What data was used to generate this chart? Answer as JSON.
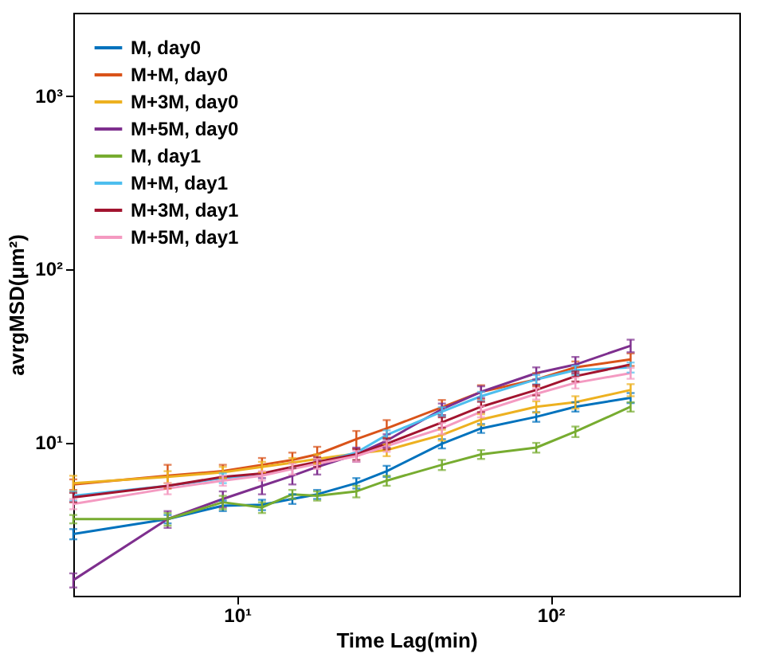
{
  "chart_data": {
    "type": "line",
    "xlabel": "Time Lag(min)",
    "ylabel": "avrgMSD(μm²)",
    "log": "xy",
    "legend": "top left",
    "grid": false,
    "xlim": [
      3,
      400
    ],
    "ylim": [
      1.3,
      3000
    ],
    "xticks": [
      {
        "value": 10,
        "label": "10¹"
      },
      {
        "value": 100,
        "label": "10²"
      }
    ],
    "yticks": [
      {
        "value": 10,
        "label": "10¹"
      },
      {
        "value": 100,
        "label": "10²"
      },
      {
        "value": 1000,
        "label": "10³"
      }
    ],
    "x": [
      3,
      6,
      9,
      12,
      15,
      18,
      24,
      30,
      45,
      60,
      90,
      120,
      180
    ],
    "series": [
      {
        "name": "M, day0",
        "color": "#0072bd",
        "values": [
          2.95,
          3.6,
          4.3,
          4.35,
          4.7,
          5.0,
          5.8,
          6.8,
          9.8,
          12,
          14,
          16,
          18
        ],
        "errors": [
          0.2,
          0.2,
          0.3,
          0.3,
          0.3,
          0.3,
          0.4,
          0.5,
          0.6,
          0.7,
          0.9,
          1.0,
          1.2
        ]
      },
      {
        "name": "M+M, day0",
        "color": "#d95319",
        "values": [
          5.7,
          6.4,
          6.8,
          7.4,
          7.9,
          8.5,
          10.4,
          12.0,
          15.9,
          19.5,
          23,
          27,
          30
        ],
        "errors": [
          0.4,
          1.0,
          0.6,
          0.7,
          0.8,
          0.9,
          1.2,
          1.4,
          1.6,
          1.8,
          2,
          2.2,
          2.5
        ]
      },
      {
        "name": "M+3M, day0",
        "color": "#edb120",
        "values": [
          5.8,
          6.3,
          6.7,
          7.2,
          7.6,
          8.0,
          8.6,
          9.0,
          11,
          13.5,
          16,
          17,
          20
        ],
        "errors": [
          0.6,
          0.5,
          0.5,
          0.5,
          0.5,
          0.5,
          null,
          0.7,
          0.8,
          1,
          1.2,
          1.4,
          1.6
        ]
      },
      {
        "name": "M+5M, day0",
        "color": "#7e2f8e",
        "values": [
          1.6,
          3.6,
          4.7,
          5.6,
          6.4,
          7.2,
          8.5,
          10.2,
          15.5,
          19.5,
          25,
          28,
          36
        ],
        "errors": [
          0.15,
          0.4,
          0.5,
          0.6,
          0.7,
          0.7,
          0.8,
          0.9,
          1.2,
          1.5,
          2,
          3,
          3
        ]
      },
      {
        "name": "M, day1",
        "color": "#77ac30",
        "values": [
          3.6,
          3.6,
          4.5,
          4.2,
          5.0,
          4.9,
          5.2,
          6.0,
          7.4,
          8.5,
          9.3,
          11.5,
          16
        ],
        "errors": [
          0.2,
          0.3,
          0.4,
          0.3,
          0.3,
          0.3,
          0.4,
          0.4,
          0.5,
          0.5,
          0.6,
          0.8,
          1.0
        ]
      },
      {
        "name": "M+M, day1",
        "color": "#4dbeee",
        "values": [
          4.9,
          5.6,
          6.2,
          6.5,
          7.1,
          7.6,
          8.7,
          11,
          15,
          18.4,
          23,
          26,
          27
        ],
        "errors": [
          0.3,
          null,
          0.4,
          null,
          null,
          null,
          null,
          0.7,
          0.9,
          1.1,
          1.4,
          1.6,
          1.8
        ]
      },
      {
        "name": "M+3M, day1",
        "color": "#a2142f",
        "values": [
          4.8,
          5.6,
          6.3,
          6.6,
          7.2,
          7.7,
          8.5,
          9.8,
          13,
          16,
          20,
          24,
          28
        ],
        "errors": [
          0.3,
          null,
          null,
          null,
          null,
          0.5,
          0.6,
          0.7,
          0.9,
          1.1,
          1.4,
          1.6,
          null
        ]
      },
      {
        "name": "M+5M, day1",
        "color": "#f49ac1",
        "values": [
          4.4,
          5.4,
          6.0,
          6.4,
          7.0,
          7.5,
          8.3,
          9.5,
          12,
          15,
          19,
          22,
          25
        ],
        "errors": [
          0.3,
          0.4,
          0.4,
          0.4,
          0.5,
          0.5,
          0.6,
          0.7,
          0.9,
          1.1,
          1.4,
          1.6,
          1.8
        ]
      }
    ]
  }
}
